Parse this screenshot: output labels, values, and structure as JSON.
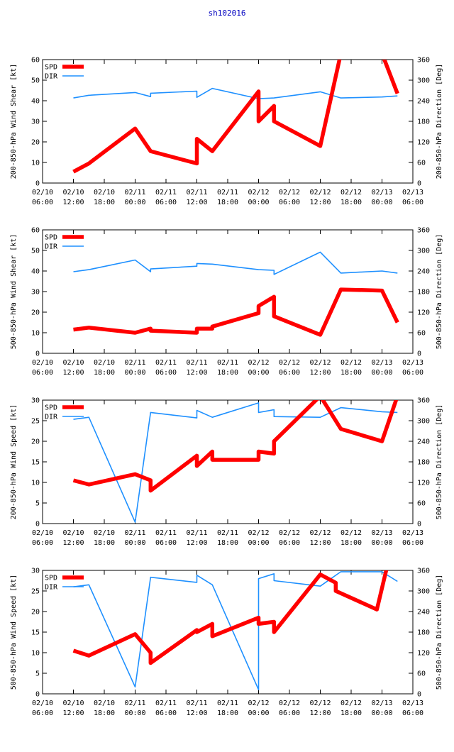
{
  "title": "sh102016",
  "colors": {
    "spd": "#ff0000",
    "dir": "#1e90ff",
    "axis": "#000000",
    "title": "#0000c0"
  },
  "x_ticks": [
    {
      "t": 0,
      "top": "02/10",
      "bottom": "06:00"
    },
    {
      "t": 6,
      "top": "02/10",
      "bottom": "12:00"
    },
    {
      "t": 12,
      "top": "02/10",
      "bottom": "18:00"
    },
    {
      "t": 18,
      "top": "02/11",
      "bottom": "00:00"
    },
    {
      "t": 24,
      "top": "02/11",
      "bottom": "06:00"
    },
    {
      "t": 30,
      "top": "02/11",
      "bottom": "12:00"
    },
    {
      "t": 36,
      "top": "02/11",
      "bottom": "18:00"
    },
    {
      "t": 42,
      "top": "02/12",
      "bottom": "00:00"
    },
    {
      "t": 48,
      "top": "02/12",
      "bottom": "06:00"
    },
    {
      "t": 54,
      "top": "02/12",
      "bottom": "12:00"
    },
    {
      "t": 60,
      "top": "02/12",
      "bottom": "18:00"
    },
    {
      "t": 66,
      "top": "02/13",
      "bottom": "00:00"
    },
    {
      "t": 72,
      "top": "02/13",
      "bottom": "06:00"
    }
  ],
  "chart_data": [
    {
      "type": "line",
      "ylabel": "200-850-hPa Wind Shear [kt]",
      "y2label": "200-850-hPa Direction [Deg]",
      "ylim": [
        0,
        60
      ],
      "yticks": [
        0,
        10,
        20,
        30,
        40,
        50,
        60
      ],
      "y2lim": [
        0,
        360
      ],
      "y2ticks": [
        0,
        60,
        120,
        180,
        240,
        300,
        360
      ],
      "xlim": [
        0,
        72
      ],
      "legend": [
        "SPD",
        "DIR"
      ],
      "series": [
        {
          "name": "SPD",
          "axis": "left",
          "x": [
            6,
            9,
            18,
            21,
            30,
            30,
            33,
            42,
            42,
            45,
            45,
            54,
            58,
            66,
            69
          ],
          "y": [
            5.5,
            9.5,
            26.5,
            15.5,
            9.5,
            21.5,
            15.5,
            44.5,
            30,
            37.5,
            30,
            18,
            63,
            63,
            43.5
          ]
        },
        {
          "name": "DIR",
          "axis": "right",
          "x": [
            6,
            9,
            18,
            21,
            21,
            30,
            30,
            33,
            42,
            45,
            54,
            58,
            66,
            69
          ],
          "y": [
            248,
            256,
            264,
            252,
            262,
            268,
            250,
            276,
            246,
            248,
            266,
            248,
            251,
            254
          ]
        }
      ]
    },
    {
      "type": "line",
      "ylabel": "500-850-hPa Wind Shear [kt]",
      "y2label": "500-850-hPa Direction [Deg]",
      "ylim": [
        0,
        60
      ],
      "yticks": [
        0,
        10,
        20,
        30,
        40,
        50,
        60
      ],
      "y2lim": [
        0,
        360
      ],
      "y2ticks": [
        0,
        60,
        120,
        180,
        240,
        300,
        360
      ],
      "xlim": [
        0,
        72
      ],
      "legend": [
        "SPD",
        "DIR"
      ],
      "series": [
        {
          "name": "SPD",
          "axis": "left",
          "x": [
            6,
            9,
            18,
            21,
            21,
            30,
            30,
            33,
            33,
            42,
            42,
            45,
            45,
            54,
            58,
            66,
            69
          ],
          "y": [
            11.5,
            12.5,
            10,
            12,
            11,
            10,
            12,
            12,
            13,
            19.5,
            23,
            27.5,
            18,
            9,
            31,
            30.5,
            15
          ]
        },
        {
          "name": "DIR",
          "axis": "right",
          "x": [
            6,
            9,
            18,
            21,
            21,
            30,
            30,
            33,
            42,
            45,
            45,
            54,
            58,
            66,
            69
          ],
          "y": [
            238,
            244,
            272,
            238,
            246,
            254,
            262,
            260,
            244,
            242,
            230,
            295,
            234,
            240,
            234
          ]
        }
      ]
    },
    {
      "type": "line",
      "ylabel": "200-850-hPa Wind Speed [kt]",
      "y2label": "500-850-hPa Direction [Deg]",
      "ylim": [
        0,
        30
      ],
      "yticks": [
        0,
        5,
        10,
        15,
        20,
        25,
        30
      ],
      "y2lim": [
        0,
        360
      ],
      "y2ticks": [
        0,
        60,
        120,
        180,
        240,
        300,
        360
      ],
      "xlim": [
        0,
        72
      ],
      "legend": [
        "SPD",
        "DIR"
      ],
      "series": [
        {
          "name": "SPD",
          "axis": "left",
          "x": [
            6,
            9,
            18,
            21,
            21,
            30,
            30,
            33,
            33,
            42,
            42,
            45,
            45,
            54,
            58,
            66,
            69
          ],
          "y": [
            10.5,
            9.5,
            12,
            10.5,
            8,
            16.5,
            14,
            17.5,
            15.5,
            15.5,
            17.5,
            17,
            20,
            31,
            23,
            20,
            31
          ]
        },
        {
          "name": "DIR",
          "axis": "right",
          "x": [
            6,
            9,
            18,
            21,
            30,
            30,
            33,
            42,
            42,
            45,
            45,
            54,
            58,
            66,
            69
          ],
          "y": [
            304,
            310,
            4,
            324,
            308,
            330,
            310,
            352,
            324,
            332,
            312,
            310,
            338,
            326,
            324
          ]
        }
      ]
    },
    {
      "type": "line",
      "ylabel": "500-850-hPa Wind Speed [kt]",
      "y2label": "500-850-hPa Direction [Deg]",
      "ylim": [
        0,
        30
      ],
      "yticks": [
        0,
        5,
        10,
        15,
        20,
        25,
        30
      ],
      "y2lim": [
        0,
        360
      ],
      "y2ticks": [
        0,
        60,
        120,
        180,
        240,
        300,
        360
      ],
      "xlim": [
        0,
        72
      ],
      "legend": [
        "SPD",
        "DIR"
      ],
      "series": [
        {
          "name": "SPD",
          "axis": "left",
          "x": [
            6,
            9,
            18,
            21,
            21,
            30,
            30,
            33,
            33,
            42,
            42,
            45,
            45,
            54,
            57,
            57,
            65,
            67
          ],
          "y": [
            10.5,
            9.3,
            14.5,
            10,
            7.5,
            15.5,
            15,
            17,
            14,
            18.5,
            17,
            17.5,
            15,
            29,
            27,
            25,
            20.5,
            31
          ]
        },
        {
          "name": "DIR",
          "axis": "right",
          "x": [
            6,
            9,
            18,
            21,
            30,
            30,
            33,
            42,
            42,
            45,
            45,
            54,
            58,
            66,
            69
          ],
          "y": [
            312,
            318,
            20,
            340,
            325,
            346,
            318,
            12,
            336,
            350,
            330,
            314,
            356,
            356,
            328
          ]
        }
      ]
    }
  ]
}
